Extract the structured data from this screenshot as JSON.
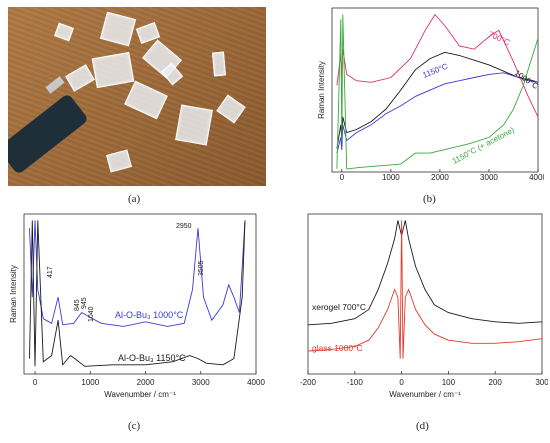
{
  "captions": {
    "a": "(a)",
    "b": "(b)",
    "c": "(c)",
    "d": "(d)"
  },
  "colors": {
    "black": "#1a1a1a",
    "blue": "#3a3ad8",
    "red": "#e0306a",
    "green": "#3aa83a",
    "redD": "#e23b2a"
  },
  "chart_data": [
    {
      "panel": "b",
      "type": "line",
      "ylabel": "Raman Intensity",
      "xlim": [
        -200,
        4000
      ],
      "x_ticks": [
        "0",
        "1000",
        "2000",
        "3000",
        "4000"
      ],
      "series_labels": [
        "700°C",
        "1150°C",
        "1000°C",
        "1150°C (+ acetone)"
      ],
      "series": [
        {
          "name": "700°C",
          "color": "red",
          "x": [
            -100,
            -20,
            0,
            20,
            100,
            300,
            600,
            1000,
            1400,
            1700,
            1900,
            2100,
            2400,
            2700,
            3000,
            3200,
            3500,
            3800,
            4000
          ],
          "y": [
            0.55,
            0.75,
            0.6,
            0.78,
            0.62,
            0.58,
            0.57,
            0.6,
            0.72,
            0.9,
            1.0,
            0.93,
            0.8,
            0.78,
            0.86,
            0.9,
            0.7,
            0.48,
            0.35
          ]
        },
        {
          "name": "1000°C",
          "color": "black",
          "x": [
            -100,
            -20,
            0,
            20,
            100,
            300,
            600,
            900,
            1200,
            1500,
            1800,
            2100,
            2400,
            2700,
            3000,
            3300,
            3600,
            3900,
            4000
          ],
          "y": [
            0.15,
            0.3,
            0.2,
            0.35,
            0.25,
            0.27,
            0.32,
            0.4,
            0.52,
            0.65,
            0.72,
            0.76,
            0.74,
            0.71,
            0.68,
            0.64,
            0.6,
            0.58,
            0.57
          ]
        },
        {
          "name": "1150°C",
          "color": "blue",
          "x": [
            -100,
            -20,
            0,
            20,
            100,
            300,
            600,
            900,
            1200,
            1500,
            1800,
            2100,
            2400,
            2700,
            3000,
            3300,
            3600,
            3800,
            4000
          ],
          "y": [
            0.12,
            0.22,
            0.14,
            0.3,
            0.2,
            0.25,
            0.3,
            0.37,
            0.42,
            0.48,
            0.52,
            0.56,
            0.58,
            0.6,
            0.62,
            0.63,
            0.6,
            0.58,
            0.57
          ]
        },
        {
          "name": "1150°C (+ acetone)",
          "color": "green",
          "x": [
            -100,
            -20,
            0,
            20,
            100,
            400,
            800,
            1200,
            1500,
            1800,
            2200,
            2600,
            3000,
            3300,
            3500,
            3700,
            3850,
            4000
          ],
          "y": [
            0.02,
            0.97,
            0.2,
            1.0,
            0.02,
            0.03,
            0.04,
            0.05,
            0.12,
            0.12,
            0.15,
            0.18,
            0.22,
            0.3,
            0.4,
            0.55,
            0.7,
            0.85
          ]
        }
      ]
    },
    {
      "panel": "c",
      "type": "line",
      "ylabel": "Raman Intensity",
      "xlabel": "Wavenumber / cm⁻¹",
      "xlim": [
        -200,
        4000
      ],
      "x_ticks": [
        "0",
        "1000",
        "2000",
        "3000",
        "4000"
      ],
      "peak_labels": [
        "417",
        "845",
        "945",
        "1040",
        "2950",
        "3505"
      ],
      "series_labels": [
        "Al-O-Bu₃ 1000°C",
        "Al-O-Bu₃ 1150°C"
      ],
      "series": [
        {
          "name": "Al-O-Bu₃ 1000°C",
          "color": "blue",
          "x": [
            -100,
            -50,
            0,
            50,
            150,
            300,
            417,
            500,
            700,
            845,
            945,
            1040,
            1200,
            1600,
            2000,
            2400,
            2700,
            2850,
            2950,
            3050,
            3200,
            3400,
            3505,
            3600,
            3700,
            3800
          ],
          "y": [
            0.95,
            0.5,
            1.0,
            0.55,
            0.36,
            0.33,
            0.5,
            0.32,
            0.33,
            0.4,
            0.38,
            0.36,
            0.33,
            0.31,
            0.34,
            0.31,
            0.33,
            0.55,
            0.95,
            0.5,
            0.35,
            0.45,
            0.58,
            0.5,
            0.4,
            1.0
          ]
        },
        {
          "name": "Al-O-Bu₃ 1150°C",
          "color": "black",
          "x": [
            -100,
            -50,
            0,
            50,
            150,
            300,
            417,
            500,
            640,
            720,
            900,
            1400,
            2000,
            2500,
            2800,
            2950,
            3100,
            3400,
            3600,
            3750,
            3800
          ],
          "y": [
            0.1,
            1.0,
            0.05,
            1.0,
            0.08,
            0.12,
            0.35,
            0.06,
            0.12,
            0.1,
            0.05,
            0.06,
            0.06,
            0.08,
            0.12,
            0.1,
            0.07,
            0.06,
            0.1,
            0.5,
            1.0
          ]
        }
      ]
    },
    {
      "panel": "d",
      "type": "line",
      "xlabel": "Wavenumber / cm⁻¹",
      "xlim": [
        -200,
        300
      ],
      "x_ticks": [
        "-200",
        "-100",
        "0",
        "100",
        "200",
        "300"
      ],
      "series_labels": [
        "xerogel 700°C",
        "glass 1000°C"
      ],
      "series": [
        {
          "name": "xerogel 700°C",
          "color": "black",
          "x": [
            -200,
            -150,
            -100,
            -70,
            -50,
            -30,
            -15,
            -8,
            0,
            8,
            15,
            30,
            50,
            70,
            100,
            150,
            200,
            250,
            300
          ],
          "y": [
            0.32,
            0.33,
            0.36,
            0.42,
            0.55,
            0.72,
            0.88,
            1.0,
            0.9,
            1.0,
            0.88,
            0.7,
            0.55,
            0.45,
            0.4,
            0.36,
            0.34,
            0.33,
            0.34
          ]
        },
        {
          "name": "glass 1000°C",
          "color": "redD",
          "x": [
            -200,
            -150,
            -100,
            -70,
            -50,
            -30,
            -15,
            -8,
            -3,
            0,
            3,
            8,
            15,
            30,
            50,
            70,
            100,
            150,
            200,
            250,
            300
          ],
          "y": [
            0.15,
            0.16,
            0.18,
            0.22,
            0.3,
            0.42,
            0.55,
            0.5,
            0.1,
            1.0,
            0.1,
            0.5,
            0.55,
            0.42,
            0.32,
            0.26,
            0.22,
            0.2,
            0.2,
            0.21,
            0.23
          ]
        }
      ]
    }
  ]
}
